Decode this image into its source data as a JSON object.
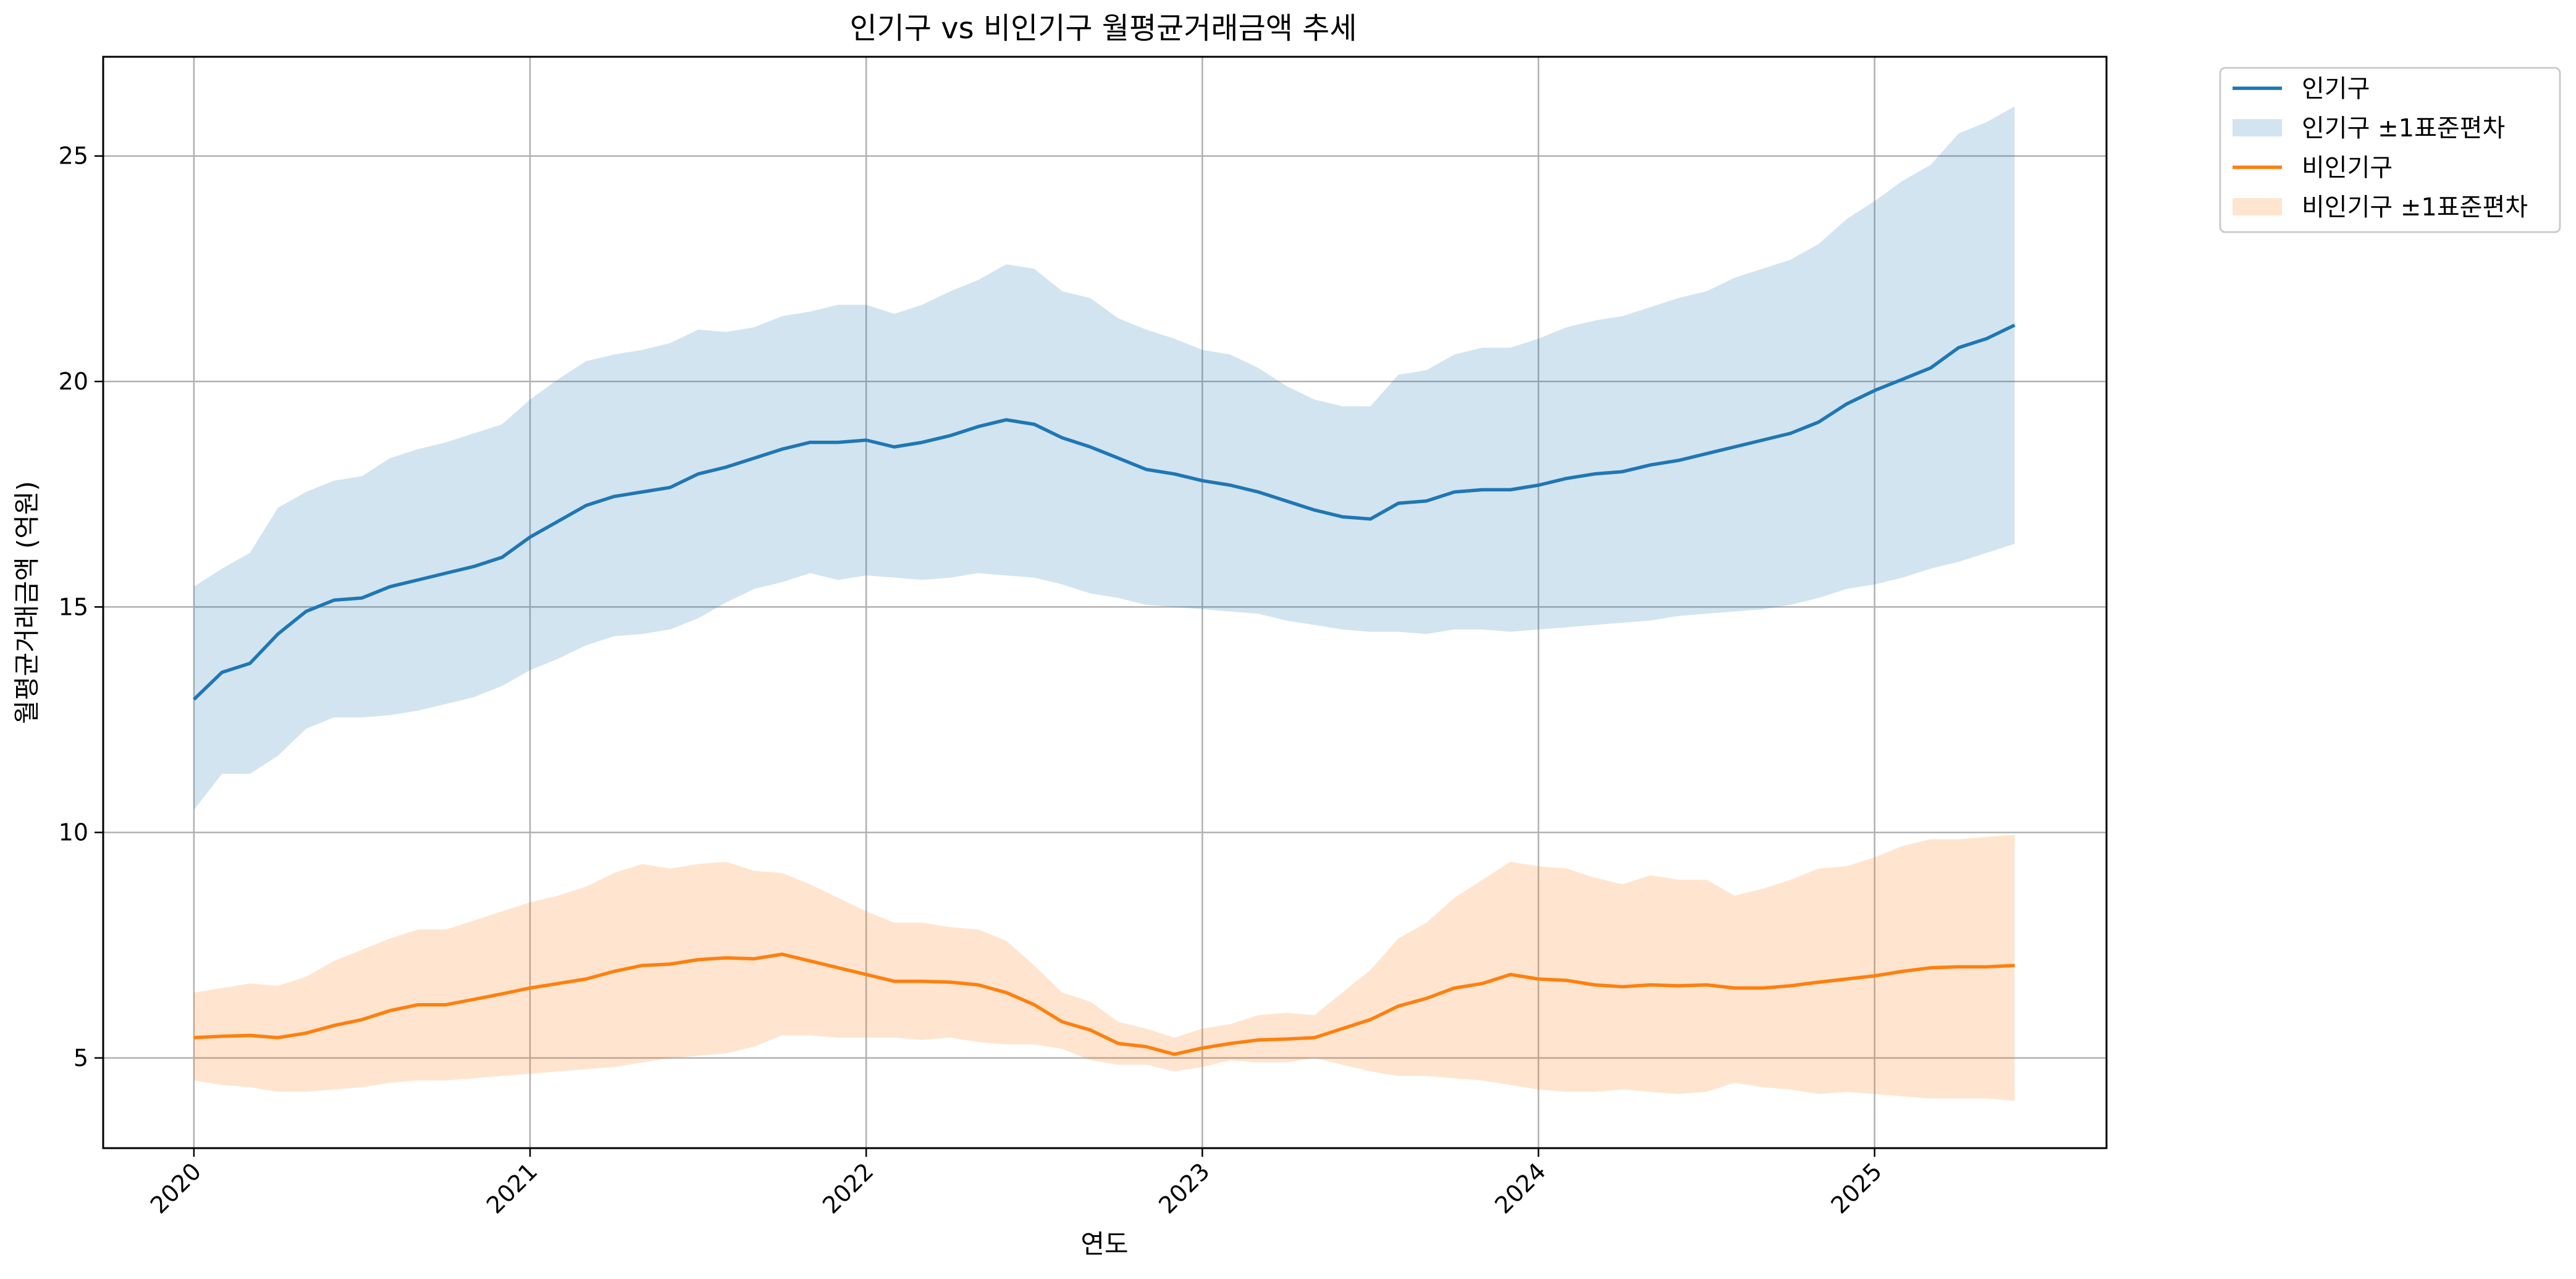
{
  "chart_data": {
    "type": "line",
    "title": "인기구 vs 비인기구 월평균거래금액 추세",
    "xlabel": "연도",
    "ylabel": "월평균거래금액 (억원)",
    "xlim": [
      2019.73,
      2025.69
    ],
    "ylim": [
      3.0,
      27.2
    ],
    "x_ticks": [
      2020,
      2021,
      2022,
      2023,
      2024,
      2025
    ],
    "x_tick_labels": [
      "2020",
      "2021",
      "2022",
      "2023",
      "2024",
      "2025"
    ],
    "y_ticks": [
      5,
      10,
      15,
      20,
      25
    ],
    "y_tick_labels": [
      "5",
      "10",
      "15",
      "20",
      "25"
    ],
    "grid": true,
    "legend_position": "outside-top-right",
    "start": "2020-01",
    "series": [
      {
        "name": "인기구",
        "band_label": "인기구 ±1표준편차",
        "color": "#1f77b4",
        "band_color": "#1f77b4",
        "mean": [
          12.95,
          13.55,
          13.75,
          14.4,
          14.9,
          15.15,
          15.2,
          15.45,
          15.6,
          15.75,
          15.9,
          16.1,
          16.55,
          16.9,
          17.25,
          17.45,
          17.55,
          17.65,
          17.95,
          18.1,
          18.3,
          18.5,
          18.65,
          18.65,
          18.7,
          18.55,
          18.65,
          18.8,
          19.0,
          19.15,
          19.05,
          18.75,
          18.55,
          18.3,
          18.05,
          17.95,
          17.8,
          17.7,
          17.55,
          17.35,
          17.15,
          17.0,
          16.95,
          17.3,
          17.35,
          17.55,
          17.6,
          17.6,
          17.7,
          17.85,
          17.95,
          18.0,
          18.15,
          18.25,
          18.4,
          18.55,
          18.7,
          18.85,
          19.1,
          19.5,
          19.8,
          20.05,
          20.3,
          20.75,
          20.95,
          21.25
        ],
        "upper": [
          15.45,
          15.85,
          16.2,
          17.2,
          17.55,
          17.8,
          17.9,
          18.3,
          18.5,
          18.65,
          18.85,
          19.05,
          19.6,
          20.05,
          20.45,
          20.6,
          20.7,
          20.85,
          21.15,
          21.1,
          21.2,
          21.45,
          21.55,
          21.7,
          21.7,
          21.5,
          21.7,
          22.0,
          22.25,
          22.6,
          22.5,
          22.0,
          21.85,
          21.4,
          21.15,
          20.95,
          20.7,
          20.6,
          20.3,
          19.9,
          19.6,
          19.45,
          19.45,
          20.15,
          20.25,
          20.6,
          20.75,
          20.75,
          20.95,
          21.2,
          21.35,
          21.45,
          21.65,
          21.85,
          22.0,
          22.3,
          22.5,
          22.7,
          23.05,
          23.6,
          24.0,
          24.45,
          24.8,
          25.5,
          25.75,
          26.1
        ],
        "lower": [
          10.5,
          11.3,
          11.3,
          11.7,
          12.3,
          12.55,
          12.55,
          12.6,
          12.7,
          12.85,
          13.0,
          13.25,
          13.6,
          13.85,
          14.15,
          14.35,
          14.4,
          14.5,
          14.75,
          15.1,
          15.4,
          15.55,
          15.75,
          15.6,
          15.7,
          15.65,
          15.6,
          15.65,
          15.75,
          15.7,
          15.65,
          15.5,
          15.3,
          15.2,
          15.05,
          15.0,
          14.95,
          14.9,
          14.85,
          14.7,
          14.6,
          14.5,
          14.45,
          14.45,
          14.4,
          14.5,
          14.5,
          14.45,
          14.5,
          14.55,
          14.6,
          14.65,
          14.7,
          14.8,
          14.85,
          14.9,
          14.95,
          15.05,
          15.2,
          15.4,
          15.5,
          15.65,
          15.85,
          16.0,
          16.2,
          16.4
        ]
      },
      {
        "name": "비인기구",
        "band_label": "비인기구 ±1표준편차",
        "color": "#ff7f0e",
        "band_color": "#ff7f0e",
        "mean": [
          5.45,
          5.48,
          5.5,
          5.45,
          5.55,
          5.72,
          5.85,
          6.05,
          6.18,
          6.18,
          6.3,
          6.42,
          6.55,
          6.65,
          6.75,
          6.92,
          7.05,
          7.08,
          7.18,
          7.22,
          7.2,
          7.3,
          7.15,
          7.0,
          6.85,
          6.7,
          6.7,
          6.68,
          6.62,
          6.45,
          6.18,
          5.8,
          5.62,
          5.32,
          5.25,
          5.08,
          5.22,
          5.32,
          5.4,
          5.42,
          5.45,
          5.65,
          5.85,
          6.15,
          6.32,
          6.55,
          6.65,
          6.85,
          6.75,
          6.72,
          6.62,
          6.58,
          6.62,
          6.6,
          6.62,
          6.55,
          6.55,
          6.6,
          6.68,
          6.75,
          6.82,
          6.92,
          7.0,
          7.02,
          7.02,
          7.05
        ],
        "upper": [
          6.45,
          6.55,
          6.65,
          6.6,
          6.8,
          7.15,
          7.4,
          7.65,
          7.85,
          7.85,
          8.05,
          8.25,
          8.45,
          8.6,
          8.8,
          9.1,
          9.3,
          9.2,
          9.3,
          9.35,
          9.15,
          9.1,
          8.85,
          8.55,
          8.25,
          8.0,
          8.0,
          7.9,
          7.85,
          7.6,
          7.05,
          6.45,
          6.25,
          5.8,
          5.65,
          5.45,
          5.65,
          5.75,
          5.95,
          6.0,
          5.95,
          6.45,
          6.95,
          7.65,
          8.0,
          8.55,
          8.95,
          9.35,
          9.25,
          9.2,
          9.0,
          8.85,
          9.05,
          8.95,
          8.95,
          8.6,
          8.75,
          8.95,
          9.2,
          9.25,
          9.45,
          9.7,
          9.85,
          9.85,
          9.9,
          9.95
        ],
        "lower": [
          4.5,
          4.4,
          4.35,
          4.25,
          4.25,
          4.3,
          4.35,
          4.45,
          4.5,
          4.5,
          4.55,
          4.6,
          4.65,
          4.7,
          4.75,
          4.8,
          4.9,
          5.0,
          5.05,
          5.1,
          5.25,
          5.5,
          5.5,
          5.45,
          5.45,
          5.45,
          5.4,
          5.45,
          5.35,
          5.3,
          5.3,
          5.2,
          4.95,
          4.85,
          4.85,
          4.7,
          4.8,
          4.95,
          4.9,
          4.9,
          5.0,
          4.85,
          4.7,
          4.6,
          4.6,
          4.55,
          4.5,
          4.4,
          4.3,
          4.25,
          4.25,
          4.3,
          4.25,
          4.2,
          4.25,
          4.45,
          4.35,
          4.3,
          4.2,
          4.25,
          4.2,
          4.15,
          4.1,
          4.1,
          4.1,
          4.05
        ]
      }
    ]
  }
}
